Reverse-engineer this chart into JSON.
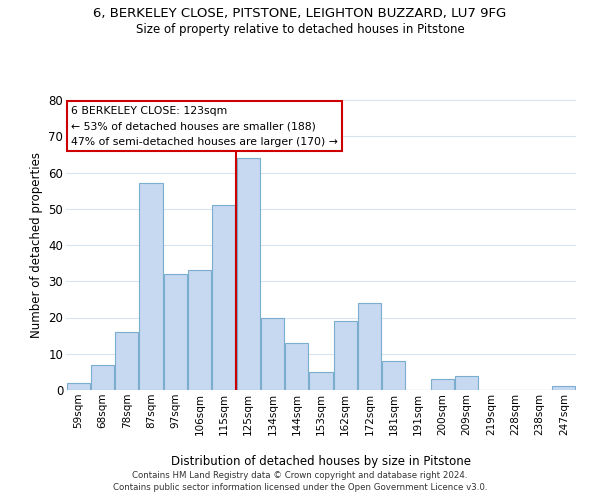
{
  "title": "6, BERKELEY CLOSE, PITSTONE, LEIGHTON BUZZARD, LU7 9FG",
  "subtitle": "Size of property relative to detached houses in Pitstone",
  "xlabel": "Distribution of detached houses by size in Pitstone",
  "ylabel": "Number of detached properties",
  "categories": [
    "59sqm",
    "68sqm",
    "78sqm",
    "87sqm",
    "97sqm",
    "106sqm",
    "115sqm",
    "125sqm",
    "134sqm",
    "144sqm",
    "153sqm",
    "162sqm",
    "172sqm",
    "181sqm",
    "191sqm",
    "200sqm",
    "209sqm",
    "219sqm",
    "228sqm",
    "238sqm",
    "247sqm"
  ],
  "values": [
    2,
    7,
    16,
    57,
    32,
    33,
    51,
    64,
    20,
    13,
    5,
    19,
    24,
    8,
    0,
    3,
    4,
    0,
    0,
    0,
    1
  ],
  "bar_color": "#c6d9f0",
  "bar_edge_color": "#7aadce",
  "vline_color": "#cc0000",
  "ylim": [
    0,
    80
  ],
  "yticks": [
    0,
    10,
    20,
    30,
    40,
    50,
    60,
    70,
    80
  ],
  "annotation_title": "6 BERKELEY CLOSE: 123sqm",
  "annotation_line1": "← 53% of detached houses are smaller (188)",
  "annotation_line2": "47% of semi-detached houses are larger (170) →",
  "annotation_box_color": "#ffffff",
  "annotation_box_edge": "#cc0000",
  "footer1": "Contains HM Land Registry data © Crown copyright and database right 2024.",
  "footer2": "Contains public sector information licensed under the Open Government Licence v3.0.",
  "background_color": "#ffffff",
  "grid_color": "#d8e4f0"
}
